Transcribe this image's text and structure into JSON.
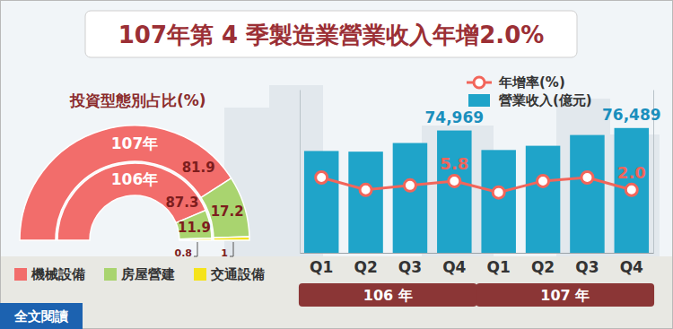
{
  "header": {
    "title": "107年第 4 季製造業營業收入年增2.0%"
  },
  "footer": {
    "button": "全文閱讀"
  },
  "chart_data": [
    {
      "type": "pie",
      "title": "投資型態別占比(%)",
      "labels": [
        "機械設備",
        "房屋營建",
        "交通設備"
      ],
      "colors": [
        "#f26d6b",
        "#a9d46f",
        "#f5e31b"
      ],
      "rings": [
        {
          "name": "107年",
          "values": [
            81.9,
            17.2,
            1.0
          ]
        },
        {
          "name": "106年",
          "values": [
            87.3,
            11.9,
            0.8
          ]
        }
      ],
      "data_labels": true,
      "legend": "bottom-left"
    },
    {
      "type": "bar",
      "categories": [
        "Q1",
        "Q2",
        "Q3",
        "Q4",
        "Q1",
        "Q2",
        "Q3",
        "Q4"
      ],
      "x_groups": [
        "106 年",
        "107 年"
      ],
      "series": [
        {
          "name": "營業收入(億元)",
          "type": "bar",
          "color": "#1fa4c9",
          "values": [
            62400,
            62000,
            67300,
            74969,
            63000,
            65600,
            72200,
            76489
          ],
          "value_labels": [
            null,
            null,
            null,
            "74,969",
            null,
            null,
            null,
            "76,489"
          ]
        },
        {
          "name": "年增率(%)",
          "type": "line",
          "axis": "y2",
          "color": "#f2655a",
          "marker": "circle",
          "values": [
            7.3,
            2.0,
            3.9,
            5.8,
            0.9,
            5.8,
            7.3,
            2.0
          ],
          "value_labels": [
            null,
            null,
            null,
            "5.8",
            null,
            null,
            null,
            "2.0"
          ]
        }
      ],
      "ylim": [
        0,
        100000
      ],
      "y2lim": [
        -25,
        45
      ],
      "tick_labels": "x",
      "data_labels": true,
      "legend": "top-right"
    }
  ]
}
